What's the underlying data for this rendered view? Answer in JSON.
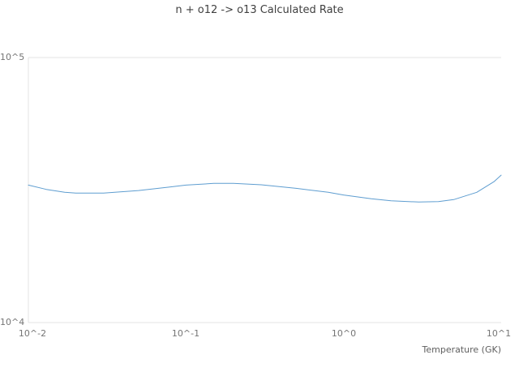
{
  "chart_data": {
    "type": "line",
    "title": "n + o12 -> o13 Calculated Rate",
    "xlabel": "Temperature (GK)",
    "ylabel": "",
    "x_scale": "log",
    "y_scale": "log",
    "xlim": [
      0.01,
      10
    ],
    "ylim": [
      10000,
      100000
    ],
    "x_tick_labels": [
      "10^-2",
      "10^-1",
      "10^0",
      "10^1"
    ],
    "y_tick_labels_bottom_to_top": [
      "10^4",
      "10^5"
    ],
    "grid": "minimal",
    "legend": "none",
    "line_color": "#5e9dd0",
    "grid_color": "#e3e3e3",
    "series": [
      {
        "name": "Calculated Rate",
        "x": [
          0.01,
          0.013,
          0.017,
          0.02,
          0.03,
          0.05,
          0.08,
          0.1,
          0.15,
          0.2,
          0.3,
          0.5,
          0.8,
          1.0,
          1.5,
          2.0,
          3.0,
          4.0,
          5.0,
          7.0,
          9.0,
          10.0
        ],
        "y": [
          33000,
          31800,
          31000,
          30800,
          30800,
          31500,
          32500,
          33000,
          33500,
          33500,
          33100,
          32100,
          31000,
          30300,
          29300,
          28800,
          28500,
          28600,
          29100,
          31000,
          34000,
          36000
        ]
      }
    ]
  }
}
